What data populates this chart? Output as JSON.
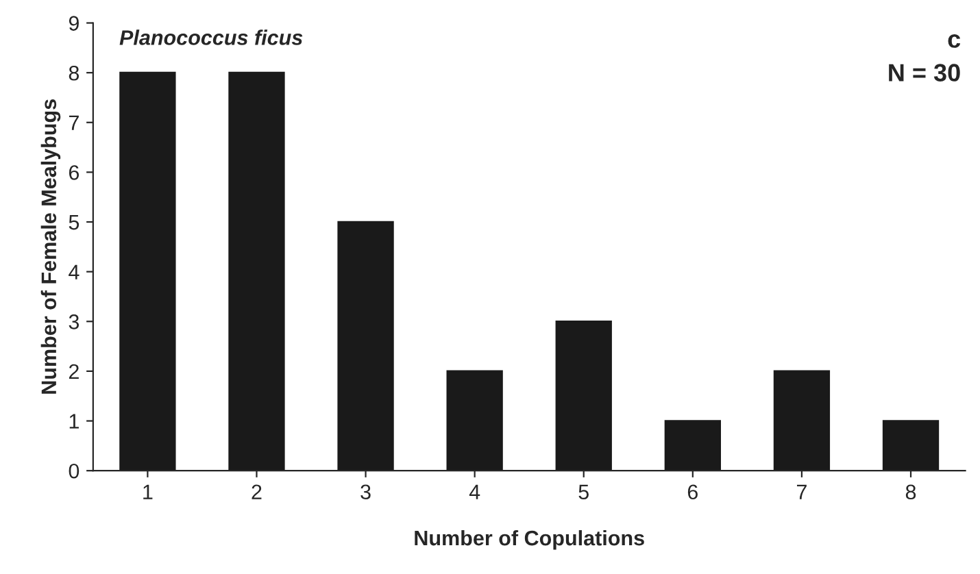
{
  "chart_data": {
    "type": "bar",
    "xlabel": "Number of Copulations",
    "ylabel": "Number of Female Mealybugs",
    "categories": [
      "1",
      "2",
      "3",
      "4",
      "5",
      "6",
      "7",
      "8"
    ],
    "values": [
      8,
      8,
      5,
      2,
      3,
      1,
      2,
      1
    ],
    "color": "#1a1a1a",
    "ylim": [
      0,
      9
    ],
    "yticks": [
      0,
      1,
      2,
      3,
      4,
      5,
      6,
      7,
      8,
      9
    ],
    "grid": false,
    "legend": false,
    "annotations": [
      "Planococcus ficus",
      "c",
      "N = 30"
    ]
  }
}
